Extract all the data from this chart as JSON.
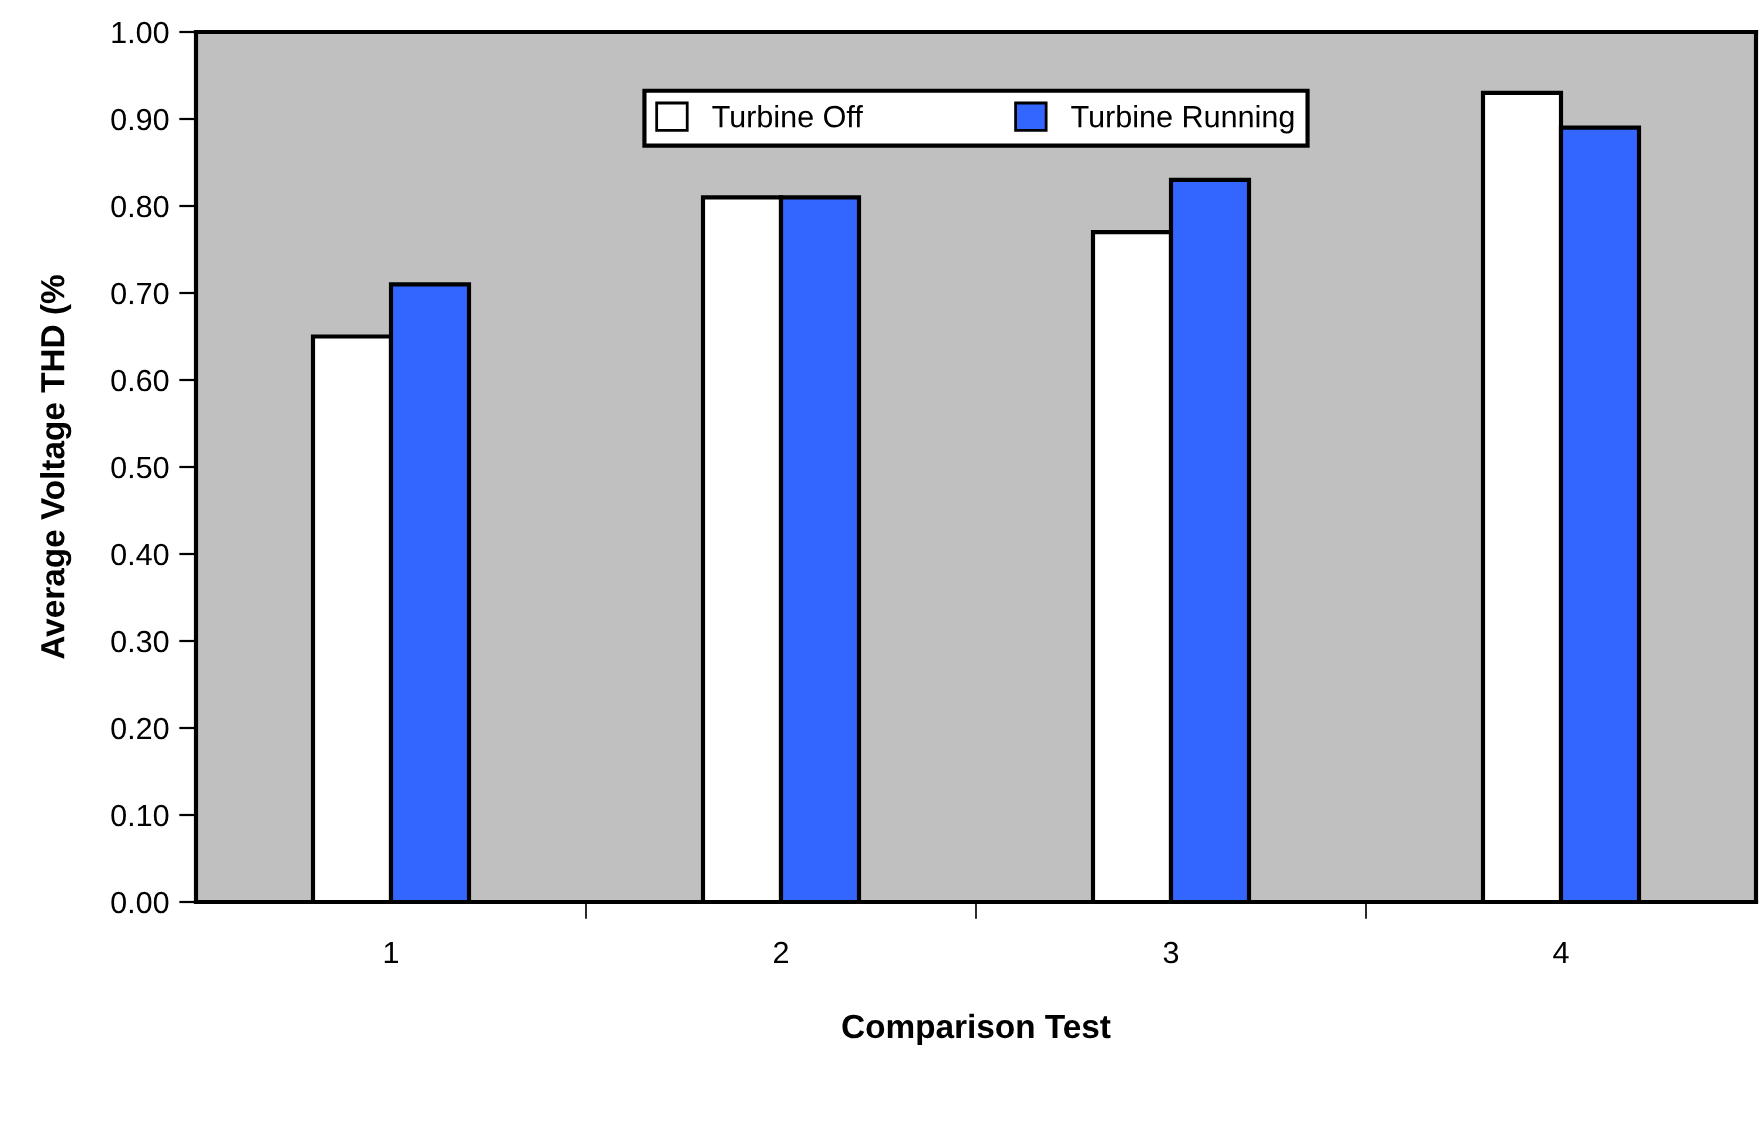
{
  "chart_data": {
    "type": "bar",
    "xlabel": "Comparison Test",
    "ylabel": "Average Voltage THD (%",
    "categories": [
      "1",
      "2",
      "3",
      "4"
    ],
    "series": [
      {
        "name": "Turbine Off",
        "color": "#ffffff",
        "values": [
          0.65,
          0.81,
          0.77,
          0.93
        ]
      },
      {
        "name": "Turbine Running",
        "color": "#3366ff",
        "values": [
          0.71,
          0.81,
          0.83,
          0.89
        ]
      }
    ],
    "ylim": [
      0,
      1
    ],
    "yticks": [
      {
        "value": 0,
        "label": "0.00"
      },
      {
        "value": 0.1,
        "label": "0.10"
      },
      {
        "value": 0.2,
        "label": "0.20"
      },
      {
        "value": 0.3,
        "label": "0.30"
      },
      {
        "value": 0.4,
        "label": "0.40"
      },
      {
        "value": 0.5,
        "label": "0.50"
      },
      {
        "value": 0.6,
        "label": "0.60"
      },
      {
        "value": 0.7,
        "label": "0.70"
      },
      {
        "value": 0.8,
        "label": "0.80"
      },
      {
        "value": 0.9,
        "label": "0.90"
      },
      {
        "value": 1,
        "label": "1.00"
      }
    ],
    "grid": false,
    "legend": "top"
  }
}
